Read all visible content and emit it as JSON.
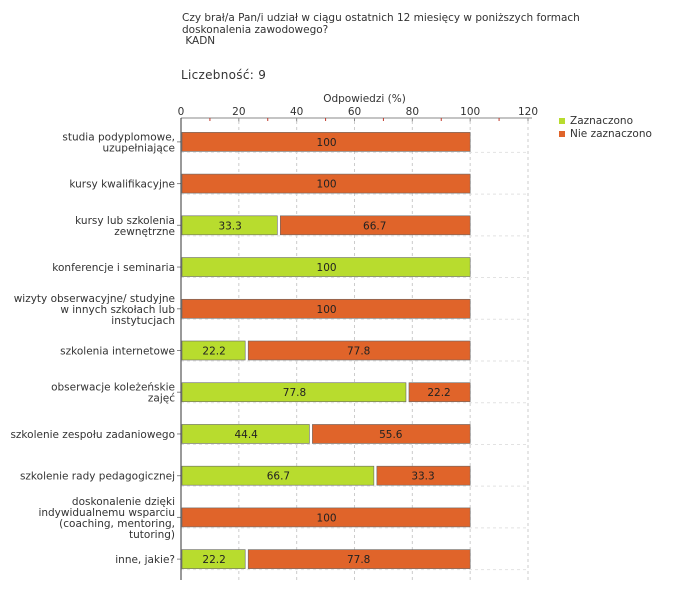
{
  "header": {
    "question_line1": "Czy brał/a Pan/i udział w ciągu ostatnich 12 miesięcy w poniższych formach",
    "question_line2": "doskonalenia zawodowego?",
    "group": " KADN",
    "count_label": "Liczebność:",
    "count_value": "9"
  },
  "chart_data": {
    "type": "bar",
    "orientation": "horizontal",
    "stacked": true,
    "title": "Czy brał/a Pan/i udział w ciągu ostatnich 12 miesięcy w poniższych formach doskonalenia zawodowego?",
    "xlabel": "Odpowiedzi (%)",
    "ylabel": "",
    "xlim": [
      0,
      120
    ],
    "xticks": [
      0,
      20,
      40,
      60,
      80,
      100,
      120
    ],
    "grid": true,
    "legend_position": "right",
    "categories": [
      [
        "studia podyplomowe,",
        "uzupełniające"
      ],
      [
        "kursy kwalifikacyjne"
      ],
      [
        "kursy lub szkolenia",
        "zewnętrzne"
      ],
      [
        "konferencje i seminaria"
      ],
      [
        "wizyty obserwacyjne/ studyjne",
        "w innych szkołach lub",
        "instytucjach"
      ],
      [
        "szkolenia internetowe"
      ],
      [
        "obserwacje koleżeńskie",
        "zajęć"
      ],
      [
        "szkolenie zespołu zadaniowego"
      ],
      [
        "szkolenie rady pedagogicznej"
      ],
      [
        "doskonalenie dzięki",
        "indywidualnemu wsparciu",
        "(coaching, mentoring,",
        "tutoring)"
      ],
      [
        "inne, jakie?"
      ]
    ],
    "series": [
      {
        "name": "Zaznaczono",
        "color": "#b8dc2e",
        "values": [
          0,
          0,
          33.3,
          100,
          0,
          22.2,
          77.8,
          44.4,
          66.7,
          0,
          22.2
        ]
      },
      {
        "name": "Nie zaznaczono",
        "color": "#e0642a",
        "values": [
          100,
          100,
          66.7,
          0,
          100,
          77.8,
          22.2,
          55.6,
          33.3,
          100,
          77.8
        ]
      }
    ]
  }
}
